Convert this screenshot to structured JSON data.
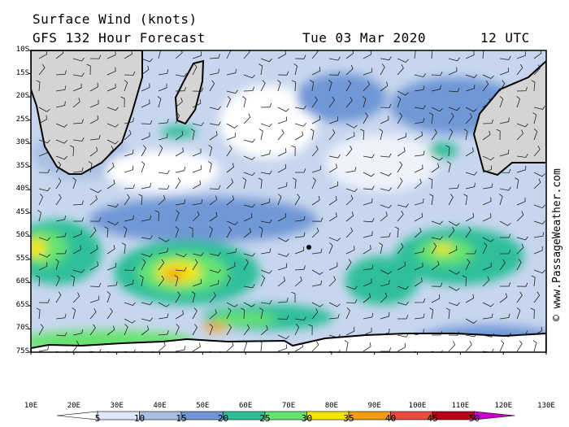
{
  "header": {
    "title": "Surface Wind (knots)",
    "subtitle": "GFS 132 Hour Forecast",
    "date": "Tue 03 Mar 2020",
    "time": "12 UTC"
  },
  "credit": "© www.PassageWeather.com",
  "axes": {
    "lat_labels": [
      "10S",
      "15S",
      "20S",
      "25S",
      "30S",
      "35S",
      "40S",
      "45S",
      "50S",
      "55S",
      "60S",
      "65S",
      "70S",
      "75S"
    ],
    "lon_labels": [
      "10E",
      "20E",
      "30E",
      "40E",
      "50E",
      "60E",
      "70E",
      "80E",
      "90E",
      "100E",
      "110E",
      "120E",
      "130E"
    ]
  },
  "legend": {
    "levels": [
      "5",
      "10",
      "15",
      "20",
      "25",
      "30",
      "35",
      "40",
      "45",
      "50"
    ],
    "colors": [
      "#ffffff",
      "#dfe8f5",
      "#a9bfe3",
      "#6f97d6",
      "#2ebf9a",
      "#66e36e",
      "#f5e600",
      "#f39c12",
      "#e94b3c",
      "#b8001a",
      "#cc00cc"
    ]
  }
}
